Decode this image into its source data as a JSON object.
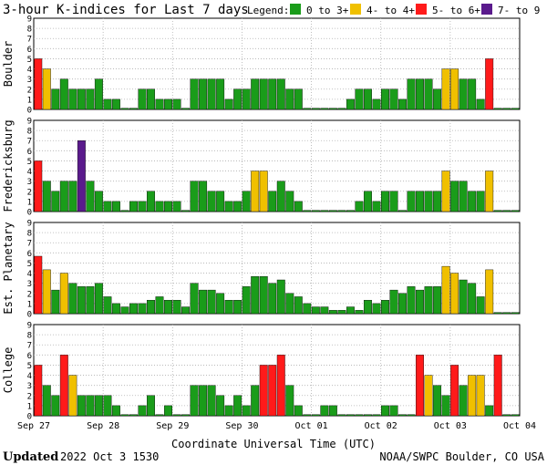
{
  "title": "3-hour K-indices for Last 7 days",
  "legend": {
    "label": "Legend:",
    "items": [
      {
        "text": "0 to 3+",
        "color": "#1a9c1a"
      },
      {
        "text": "4- to 4+",
        "color": "#f0c000"
      },
      {
        "text": "5- to 6+",
        "color": "#ff1a1a"
      },
      {
        "text": "7- to 9",
        "color": "#5a1a8c"
      }
    ]
  },
  "xlabel": "Coordinate Universal Time (UTC)",
  "footer": {
    "updated_label": "Updated",
    "updated_value": "2022 Oct  3 1530",
    "source": "NOAA/SWPC Boulder, CO USA"
  },
  "chart_data": {
    "type": "bar",
    "x_ticks": [
      "Sep 27",
      "Sep 28",
      "Sep 29",
      "Sep 30",
      "Oct 01",
      "Oct 02",
      "Oct 03",
      "Oct 04"
    ],
    "interval_hours": 3,
    "ylim": [
      0,
      9
    ],
    "y_ticks": [
      0,
      1,
      2,
      3,
      4,
      5,
      6,
      7,
      8,
      9
    ],
    "grid": true,
    "series": [
      {
        "name": "Boulder",
        "values": [
          5,
          4,
          2,
          3,
          2,
          2,
          2,
          3,
          1,
          1,
          0,
          0,
          2,
          2,
          1,
          1,
          1,
          0,
          3,
          3,
          3,
          3,
          1,
          2,
          2,
          3,
          3,
          3,
          3,
          2,
          2,
          0,
          0,
          0,
          0,
          0,
          1,
          2,
          2,
          1,
          2,
          2,
          1,
          3,
          3,
          3,
          2,
          4,
          4,
          3,
          3,
          1,
          5,
          0,
          0,
          0
        ]
      },
      {
        "name": "Fredericksburg",
        "values": [
          5,
          3,
          2,
          3,
          3,
          7,
          3,
          2,
          1,
          1,
          0,
          1,
          1,
          2,
          1,
          1,
          1,
          0,
          3,
          3,
          2,
          2,
          1,
          1,
          2,
          4,
          4,
          2,
          3,
          2,
          1,
          0,
          0,
          0,
          0,
          0,
          0,
          1,
          2,
          1,
          2,
          2,
          0,
          2,
          2,
          2,
          2,
          4,
          3,
          3,
          2,
          2,
          4,
          0,
          0,
          0
        ]
      },
      {
        "name": "Est. Planetary",
        "values": [
          5.67,
          4.33,
          2.33,
          4,
          3,
          2.67,
          2.67,
          3,
          1.67,
          1,
          0.67,
          1,
          1,
          1.33,
          1.67,
          1.33,
          1.33,
          0.67,
          3,
          2.33,
          2.33,
          2,
          1.33,
          1.33,
          2.67,
          3.67,
          3.67,
          3,
          3.33,
          2,
          1.67,
          1,
          0.67,
          0.67,
          0.33,
          0.33,
          0.67,
          0.33,
          1.33,
          1,
          1.33,
          2.33,
          2,
          2.67,
          2.33,
          2.67,
          2.67,
          4.67,
          4,
          3.33,
          3,
          1.67,
          4.33,
          0,
          0,
          0
        ]
      },
      {
        "name": "College",
        "values": [
          5,
          3,
          2,
          6,
          4,
          2,
          2,
          2,
          2,
          1,
          0,
          0,
          1,
          2,
          0,
          1,
          0,
          0,
          3,
          3,
          3,
          2,
          1,
          2,
          1,
          3,
          5,
          5,
          6,
          3,
          1,
          0,
          0,
          1,
          1,
          0,
          0,
          0,
          0,
          0,
          1,
          1,
          0,
          0,
          6,
          4,
          3,
          2,
          5,
          3,
          4,
          4,
          1,
          6,
          0,
          0
        ]
      }
    ]
  }
}
